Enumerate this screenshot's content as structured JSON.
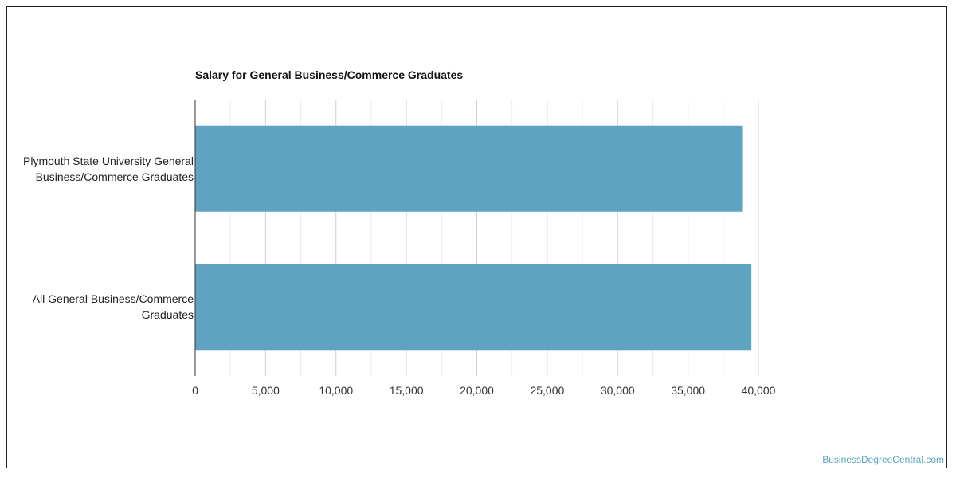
{
  "watermark": "BusinessDegreeCentral.com",
  "colors": {
    "bar": "#5ea3c0",
    "grid": "#d8d8d8",
    "axis": "#333333"
  },
  "chart_data": {
    "type": "bar",
    "orientation": "horizontal",
    "title": "Salary for General Business/Commerce Graduates",
    "xlabel": "",
    "ylabel": "",
    "categories": [
      "Plymouth State University General Business/Commerce Graduates",
      "All General Business/Commerce Graduates"
    ],
    "category_lines": [
      [
        "Plymouth State University General",
        "Business/Commerce Graduates"
      ],
      [
        "All General Business/Commerce",
        "Graduates"
      ]
    ],
    "values": [
      38900,
      39500
    ],
    "xlim": [
      0,
      40000
    ],
    "ticks": [
      "0",
      "5,000",
      "10,000",
      "15,000",
      "20,000",
      "25,000",
      "30,000",
      "35,000",
      "40,000"
    ],
    "grid": true,
    "legend": "none"
  }
}
